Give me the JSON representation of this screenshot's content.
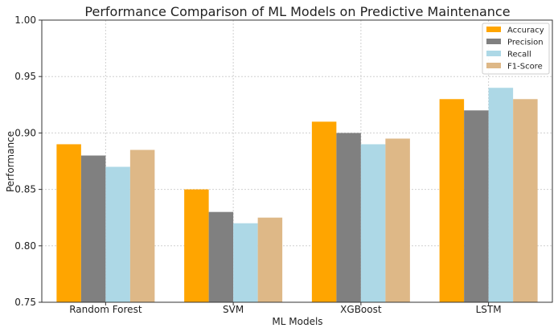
{
  "chart_data": {
    "type": "bar",
    "title": "Performance Comparison of ML Models on Predictive Maintenance",
    "xlabel": "ML Models",
    "ylabel": "Performance",
    "categories": [
      "Random Forest",
      "SVM",
      "XGBoost",
      "LSTM"
    ],
    "series": [
      {
        "name": "Accuracy",
        "color": "#FFA500",
        "values": [
          0.89,
          0.85,
          0.91,
          0.93
        ]
      },
      {
        "name": "Precision",
        "color": "#808080",
        "values": [
          0.88,
          0.83,
          0.9,
          0.92
        ]
      },
      {
        "name": "Recall",
        "color": "#ADD8E6",
        "values": [
          0.87,
          0.82,
          0.89,
          0.94
        ]
      },
      {
        "name": "F1-Score",
        "color": "#DEB887",
        "values": [
          0.885,
          0.825,
          0.895,
          0.93
        ]
      }
    ],
    "ylim": [
      0.75,
      1.0
    ],
    "yticks": [
      "0.75",
      "0.80",
      "0.85",
      "0.90",
      "0.95",
      "1.00"
    ],
    "grid": true,
    "legend_position": "top-right"
  }
}
